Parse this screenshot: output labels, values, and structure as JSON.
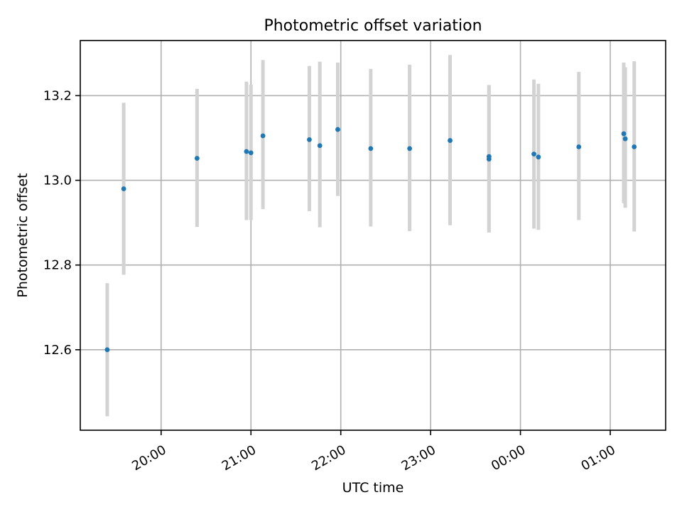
{
  "chart_data": {
    "type": "scatter",
    "title": "Photometric offset variation",
    "xlabel": "UTC time",
    "ylabel": "Photometric offset",
    "xlim": [
      "19:06",
      "01:37"
    ],
    "ylim": [
      12.41,
      13.33
    ],
    "grid": true,
    "x_ticks": [
      "20:00",
      "21:00",
      "22:00",
      "23:00",
      "00:00",
      "01:00"
    ],
    "y_ticks": [
      12.6,
      12.8,
      13.0,
      13.2
    ],
    "error_bar_color": "#d3d3d3",
    "point_color": "#1f77b4",
    "points": [
      {
        "x": "19:24",
        "y": 12.6,
        "y_low": 12.443,
        "y_high": 12.757
      },
      {
        "x": "19:35",
        "y": 12.98,
        "y_low": 12.777,
        "y_high": 13.183
      },
      {
        "x": "20:24",
        "y": 13.052,
        "y_low": 12.89,
        "y_high": 13.216
      },
      {
        "x": "20:57",
        "y": 13.068,
        "y_low": 12.906,
        "y_high": 13.233
      },
      {
        "x": "21:00",
        "y": 13.065,
        "y_low": 12.906,
        "y_high": 13.226
      },
      {
        "x": "21:08",
        "y": 13.105,
        "y_low": 12.932,
        "y_high": 13.284
      },
      {
        "x": "21:39",
        "y": 13.096,
        "y_low": 12.927,
        "y_high": 13.27
      },
      {
        "x": "21:46",
        "y": 13.082,
        "y_low": 12.889,
        "y_high": 13.28
      },
      {
        "x": "21:58",
        "y": 13.12,
        "y_low": 12.963,
        "y_high": 13.278
      },
      {
        "x": "22:20",
        "y": 13.075,
        "y_low": 12.891,
        "y_high": 13.263
      },
      {
        "x": "22:46",
        "y": 13.075,
        "y_low": 12.88,
        "y_high": 13.273
      },
      {
        "x": "23:13",
        "y": 13.094,
        "y_low": 12.894,
        "y_high": 13.296
      },
      {
        "x": "23:39",
        "y": 13.056,
        "y_low": 12.877,
        "y_high": 13.225
      },
      {
        "x": "23:39",
        "y": 13.05,
        "y_low": 12.877,
        "y_high": 13.225
      },
      {
        "x": "00:09",
        "y": 13.062,
        "y_low": 12.886,
        "y_high": 13.238
      },
      {
        "x": "00:12",
        "y": 13.055,
        "y_low": 12.883,
        "y_high": 13.228
      },
      {
        "x": "00:39",
        "y": 13.079,
        "y_low": 12.906,
        "y_high": 13.256
      },
      {
        "x": "01:09",
        "y": 13.11,
        "y_low": 12.946,
        "y_high": 13.278
      },
      {
        "x": "01:10",
        "y": 13.098,
        "y_low": 12.935,
        "y_high": 13.267
      },
      {
        "x": "01:16",
        "y": 13.079,
        "y_low": 12.879,
        "y_high": 13.281
      }
    ]
  }
}
